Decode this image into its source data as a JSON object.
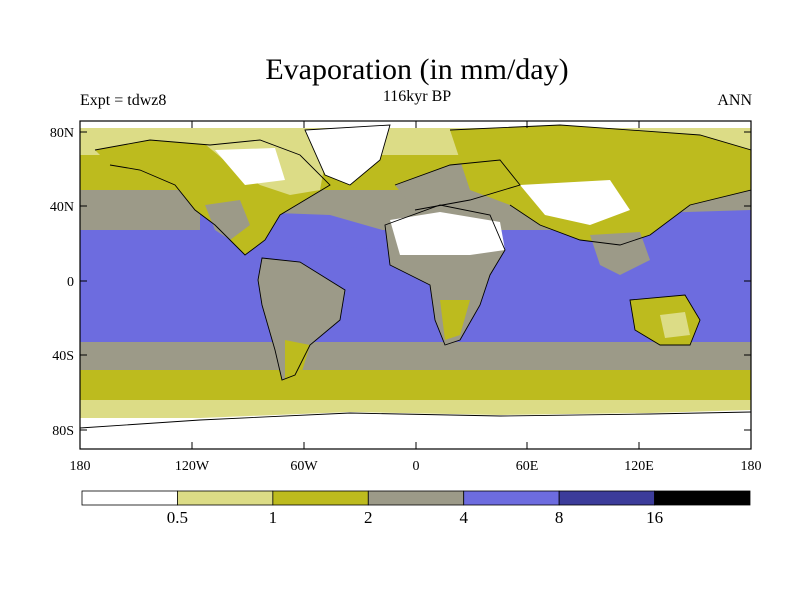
{
  "title": "Evaporation (in mm/day)",
  "subtitle": "116kyr BP",
  "left_label": "Expt = tdwz8",
  "right_label": "ANN",
  "lat_ticks": [
    "80N",
    "40N",
    "0",
    "40S",
    "80S"
  ],
  "lon_ticks": [
    "180",
    "120W",
    "60W",
    "0",
    "60E",
    "120E",
    "180"
  ],
  "colorbar": {
    "colors": [
      "#ffffff",
      "#dcdc86",
      "#bdbb1e",
      "#9c9a88",
      "#6d6cdf",
      "#3c3c9a",
      "#000000"
    ],
    "labels": [
      "0.5",
      "1",
      "2",
      "4",
      "8",
      "16"
    ]
  }
}
